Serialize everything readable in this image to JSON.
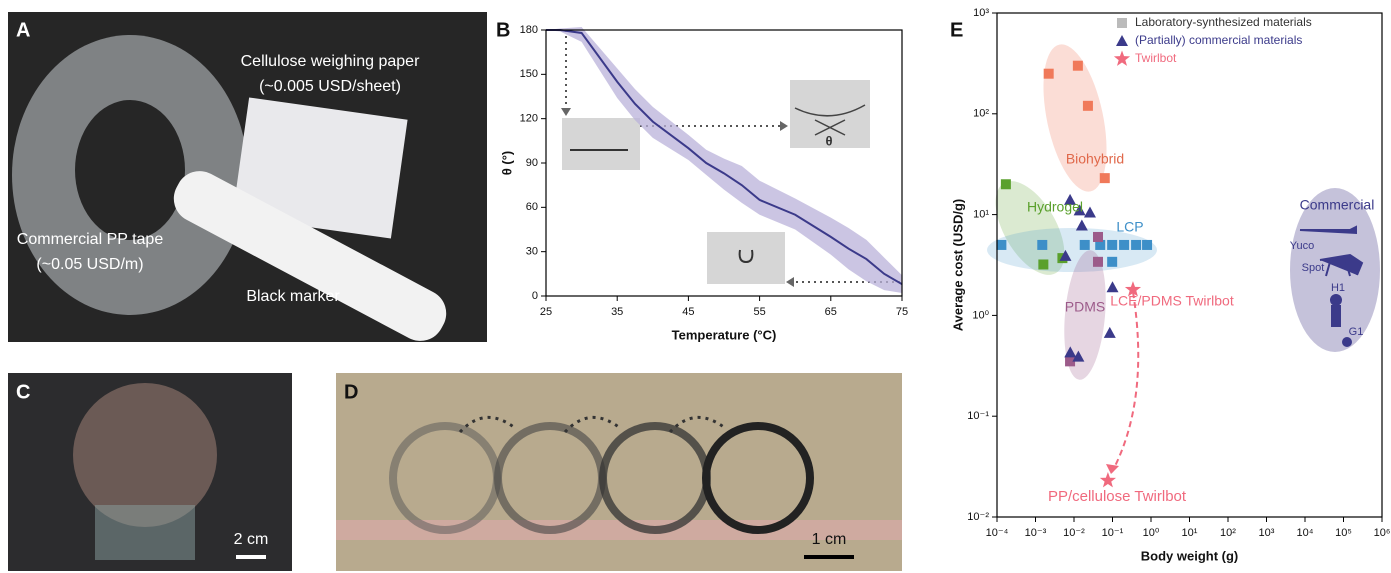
{
  "figure": {
    "panel_letters": [
      "A",
      "B",
      "C",
      "D",
      "E"
    ],
    "photo_labels": {
      "A": [
        "Cellulose weighing paper",
        "(~0.005 USD/sheet)",
        "Commercial PP tape",
        "(~0.05 USD/m)",
        "Black marker"
      ],
      "C": [
        "2 cm"
      ],
      "D": [
        "1 cm"
      ]
    }
  },
  "chart_data": [
    {
      "type": "line",
      "x_label": "Temperature (°C)",
      "y_label": "θ (°)",
      "x": [
        25,
        27,
        30,
        35,
        37.5,
        40,
        45,
        47.5,
        50,
        52.5,
        55,
        60,
        65,
        67.5,
        70,
        72.5,
        75
      ],
      "series": [
        {
          "color": "#3b3a8a",
          "band_color": "#b9b2d9",
          "values": [
            180,
            180,
            178,
            145,
            130,
            118,
            100,
            90,
            83,
            75,
            65,
            55,
            40,
            32,
            25,
            15,
            8
          ],
          "lower": [
            180,
            179,
            172,
            134,
            119,
            107,
            92,
            82,
            72,
            63,
            55,
            45,
            28,
            18,
            10,
            4,
            2
          ],
          "upper": [
            180,
            181,
            182,
            154,
            140,
            128,
            109,
            99,
            93,
            88,
            78,
            66,
            53,
            46,
            38,
            26,
            14
          ]
        }
      ],
      "xlim": [
        25,
        75
      ],
      "xticks": [
        25,
        35,
        45,
        55,
        65,
        75
      ],
      "ylim": [
        0,
        180
      ],
      "yticks": [
        0,
        30,
        60,
        90,
        120,
        150,
        180
      ],
      "annotations": [
        "θ"
      ]
    },
    {
      "type": "scatter",
      "log_x": true,
      "log_y": true,
      "legend": "top-right",
      "x_label": "Body weight (g)",
      "y_label": "Average cost (USD/g)",
      "series": [
        {
          "name": "Laboratory-synthesized materials",
          "marker": "square",
          "color": "#bbbbbb",
          "x": [
            0.0022,
            0.0126,
            0.023,
            0.063,
            0.00017,
            0.0016,
            0.005,
            0.00013,
            0.0015,
            0.019,
            0.048,
            0.098,
            0.2,
            0.41,
            0.79,
            0.098,
            0.042,
            0.042,
            0.0079
          ],
          "values": [
            250,
            300,
            120,
            23,
            20,
            3.2,
            3.7,
            5,
            5,
            5,
            5,
            5,
            5,
            5,
            5,
            3.4,
            3.4,
            6,
            0.35
          ],
          "colors": [
            "#f0795a",
            "#f0795a",
            "#f0795a",
            "#f0795a",
            "#5aa02c",
            "#5aa02c",
            "#5aa02c",
            "#3d8fc8",
            "#3d8fc8",
            "#3d8fc8",
            "#3d8fc8",
            "#3d8fc8",
            "#3d8fc8",
            "#3d8fc8",
            "#3d8fc8",
            "#3d8fc8",
            "#9c5b8a",
            "#9c5b8a",
            "#9c5b8a"
          ]
        },
        {
          "name": "(Partially) commercial materials",
          "marker": "triangle",
          "color": "#3b3a8a",
          "x": [
            0.0079,
            0.014,
            0.026,
            0.016,
            0.006,
            0.1,
            0.085,
            0.008,
            0.013
          ],
          "values": [
            14,
            11,
            10.5,
            7.8,
            3.9,
            1.9,
            0.67,
            0.43,
            0.39
          ]
        },
        {
          "name": "Twirlbot",
          "marker": "star",
          "color": "#f06a7e",
          "x": [
            0.34,
            0.076
          ],
          "values": [
            1.8,
            0.023
          ]
        }
      ],
      "xlim": [
        0.0001,
        1000000
      ],
      "xticks": [
        {
          "value": 0.0001,
          "label": "10⁻⁴"
        },
        {
          "value": 0.001,
          "label": "10⁻³"
        },
        {
          "value": 0.01,
          "label": "10⁻²"
        },
        {
          "value": 0.1,
          "label": "10⁻¹"
        },
        {
          "value": 1,
          "label": "10⁰"
        },
        {
          "value": 10,
          "label": "10¹"
        },
        {
          "value": 100,
          "label": "10²"
        },
        {
          "value": 1000,
          "label": "10³"
        },
        {
          "value": 10000,
          "label": "10⁴"
        },
        {
          "value": 100000,
          "label": "10⁵"
        },
        {
          "value": 1000000,
          "label": "10⁶"
        }
      ],
      "ylim": [
        0.01,
        1000
      ],
      "yticks": [
        {
          "value": 0.01,
          "label": "10⁻²"
        },
        {
          "value": 0.1,
          "label": "10⁻¹"
        },
        {
          "value": 1,
          "label": "10⁰"
        },
        {
          "value": 10,
          "label": "10¹"
        },
        {
          "value": 100,
          "label": "10²"
        },
        {
          "value": 1000,
          "label": "10³"
        }
      ],
      "annotations": [
        {
          "text": "Biohybrid",
          "color": "#e0684a"
        },
        {
          "text": "Hydrogel",
          "color": "#5aa02c"
        },
        {
          "text": "LCP",
          "color": "#3d8fc8"
        },
        {
          "text": "LCE/PDMS Twirlbot",
          "color": "#f06a7e"
        },
        {
          "text": "PDMS",
          "color": "#9c5b8a"
        },
        {
          "text": "PP/cellulose Twirlbot",
          "color": "#f06a7e"
        },
        {
          "text": "Commercial",
          "color": "#3b3a8a"
        },
        {
          "text": "Yuco",
          "color": "#3b3a8a"
        },
        {
          "text": "Spot",
          "color": "#3b3a8a"
        },
        {
          "text": "H1",
          "color": "#3b3a8a"
        },
        {
          "text": "G1",
          "color": "#3b3a8a"
        }
      ]
    }
  ]
}
